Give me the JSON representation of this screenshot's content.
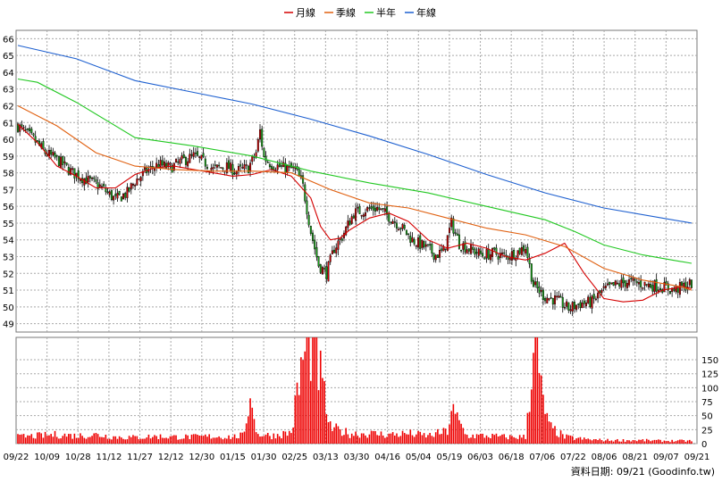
{
  "chart_data": {
    "type": "candlestick",
    "legend": [
      {
        "label": "月線",
        "color": "#d40000"
      },
      {
        "label": "季線",
        "color": "#e06010"
      },
      {
        "label": "半年",
        "color": "#22c822"
      },
      {
        "label": "年線",
        "color": "#1e60d0"
      }
    ],
    "x_tick_labels": [
      "09/22",
      "10/09",
      "10/28",
      "11/12",
      "11/27",
      "12/12",
      "12/30",
      "01/15",
      "01/30",
      "02/25",
      "03/13",
      "03/30",
      "04/16",
      "05/04",
      "05/19",
      "06/03",
      "06/18",
      "07/06",
      "07/22",
      "08/06",
      "08/21",
      "09/07",
      "09/21"
    ],
    "price_axis": {
      "ylim": [
        48.5,
        66.5
      ],
      "ticks": [
        49,
        50,
        51,
        52,
        53,
        54,
        55,
        56,
        57,
        58,
        59,
        60,
        61,
        62,
        63,
        64,
        65,
        66
      ]
    },
    "volume_axis": {
      "ylim": [
        0,
        190
      ],
      "ticks": [
        0,
        25,
        50,
        75,
        100,
        125,
        150
      ]
    },
    "colors": {
      "up": "#cc0000",
      "down": "#18a018",
      "volume": "#ee0000",
      "grid": "#a8a8a8"
    },
    "ma_series": {
      "month": [
        [
          0,
          60.9
        ],
        [
          10,
          59.8
        ],
        [
          20,
          58.4
        ],
        [
          30,
          57.8
        ],
        [
          40,
          57.1
        ],
        [
          50,
          57.1
        ],
        [
          60,
          57.9
        ],
        [
          70,
          58.3
        ],
        [
          80,
          58.4
        ],
        [
          90,
          58.2
        ],
        [
          100,
          58.0
        ],
        [
          110,
          57.8
        ],
        [
          120,
          57.9
        ],
        [
          130,
          58.2
        ],
        [
          140,
          57.8
        ],
        [
          150,
          56.5
        ],
        [
          155,
          54.8
        ],
        [
          160,
          54.0
        ],
        [
          165,
          54.1
        ],
        [
          170,
          54.6
        ],
        [
          180,
          55.3
        ],
        [
          190,
          55.6
        ],
        [
          200,
          55.1
        ],
        [
          210,
          54.0
        ],
        [
          220,
          53.5
        ],
        [
          230,
          53.8
        ],
        [
          240,
          53.5
        ],
        [
          250,
          53.0
        ],
        [
          260,
          52.8
        ],
        [
          270,
          53.2
        ],
        [
          280,
          53.8
        ],
        [
          290,
          52.0
        ],
        [
          300,
          50.5
        ],
        [
          310,
          50.3
        ],
        [
          320,
          50.4
        ],
        [
          330,
          51.0
        ],
        [
          340,
          51.2
        ],
        [
          345,
          51.1
        ]
      ],
      "quarter": [
        [
          0,
          62.0
        ],
        [
          20,
          60.8
        ],
        [
          40,
          59.2
        ],
        [
          60,
          58.4
        ],
        [
          80,
          58.2
        ],
        [
          100,
          58.1
        ],
        [
          120,
          58.1
        ],
        [
          140,
          58.0
        ],
        [
          160,
          57.0
        ],
        [
          180,
          56.2
        ],
        [
          200,
          55.9
        ],
        [
          220,
          55.3
        ],
        [
          240,
          54.7
        ],
        [
          260,
          54.3
        ],
        [
          280,
          53.6
        ],
        [
          300,
          52.3
        ],
        [
          320,
          51.6
        ],
        [
          340,
          51.2
        ],
        [
          345,
          51.0
        ]
      ],
      "half": [
        [
          0,
          63.6
        ],
        [
          10,
          63.4
        ],
        [
          30,
          62.2
        ],
        [
          60,
          60.1
        ],
        [
          90,
          59.6
        ],
        [
          120,
          59.0
        ],
        [
          150,
          58.1
        ],
        [
          180,
          57.4
        ],
        [
          210,
          56.8
        ],
        [
          240,
          56.0
        ],
        [
          270,
          55.2
        ],
        [
          285,
          54.5
        ],
        [
          300,
          53.7
        ],
        [
          320,
          53.1
        ],
        [
          335,
          52.8
        ],
        [
          345,
          52.6
        ]
      ],
      "year": [
        [
          0,
          65.6
        ],
        [
          30,
          64.8
        ],
        [
          60,
          63.5
        ],
        [
          90,
          62.8
        ],
        [
          120,
          62.1
        ],
        [
          150,
          61.2
        ],
        [
          180,
          60.2
        ],
        [
          210,
          59.1
        ],
        [
          240,
          57.9
        ],
        [
          270,
          56.8
        ],
        [
          300,
          55.9
        ],
        [
          330,
          55.3
        ],
        [
          345,
          55.0
        ]
      ]
    },
    "price_path": [
      [
        0,
        60.8
      ],
      [
        8,
        60.0
      ],
      [
        14,
        59.2
      ],
      [
        20,
        58.8
      ],
      [
        28,
        58.0
      ],
      [
        35,
        57.6
      ],
      [
        42,
        57.2
      ],
      [
        50,
        56.4
      ],
      [
        56,
        56.8
      ],
      [
        60,
        57.5
      ],
      [
        66,
        58.1
      ],
      [
        72,
        58.5
      ],
      [
        78,
        58.3
      ],
      [
        84,
        58.7
      ],
      [
        90,
        59.0
      ],
      [
        96,
        58.6
      ],
      [
        100,
        58.2
      ],
      [
        106,
        58.4
      ],
      [
        112,
        58.1
      ],
      [
        118,
        58.3
      ],
      [
        122,
        59.2
      ],
      [
        124,
        60.5
      ],
      [
        126,
        58.9
      ],
      [
        130,
        58.5
      ],
      [
        136,
        58.3
      ],
      [
        142,
        58.2
      ],
      [
        146,
        57.2
      ],
      [
        150,
        54.5
      ],
      [
        154,
        52.5
      ],
      [
        158,
        52.0
      ],
      [
        162,
        53.5
      ],
      [
        166,
        54.2
      ],
      [
        172,
        55.6
      ],
      [
        178,
        55.8
      ],
      [
        184,
        55.9
      ],
      [
        190,
        55.4
      ],
      [
        196,
        54.8
      ],
      [
        202,
        54.0
      ],
      [
        208,
        53.6
      ],
      [
        214,
        53.1
      ],
      [
        218,
        53.3
      ],
      [
        222,
        55.0
      ],
      [
        226,
        53.8
      ],
      [
        232,
        53.4
      ],
      [
        238,
        53.1
      ],
      [
        244,
        53.2
      ],
      [
        250,
        53.0
      ],
      [
        256,
        53.3
      ],
      [
        260,
        53.6
      ],
      [
        264,
        51.3
      ],
      [
        270,
        50.6
      ],
      [
        276,
        50.4
      ],
      [
        282,
        49.9
      ],
      [
        288,
        50.2
      ],
      [
        294,
        50.3
      ],
      [
        300,
        51.0
      ],
      [
        306,
        51.3
      ],
      [
        312,
        51.5
      ],
      [
        318,
        51.4
      ],
      [
        324,
        51.3
      ],
      [
        330,
        51.2
      ],
      [
        336,
        51.0
      ],
      [
        345,
        51.4
      ]
    ],
    "volume_path": [
      [
        0,
        12
      ],
      [
        10,
        14
      ],
      [
        20,
        16
      ],
      [
        30,
        14
      ],
      [
        40,
        16
      ],
      [
        50,
        12
      ],
      [
        60,
        11
      ],
      [
        70,
        13
      ],
      [
        80,
        12
      ],
      [
        90,
        12
      ],
      [
        100,
        13
      ],
      [
        110,
        12
      ],
      [
        116,
        15
      ],
      [
        118,
        70
      ],
      [
        120,
        95
      ],
      [
        122,
        18
      ],
      [
        130,
        14
      ],
      [
        140,
        20
      ],
      [
        146,
        150
      ],
      [
        150,
        185
      ],
      [
        152,
        170
      ],
      [
        156,
        100
      ],
      [
        160,
        28
      ],
      [
        170,
        18
      ],
      [
        180,
        18
      ],
      [
        190,
        16
      ],
      [
        200,
        18
      ],
      [
        210,
        14
      ],
      [
        220,
        22
      ],
      [
        222,
        60
      ],
      [
        230,
        14
      ],
      [
        240,
        14
      ],
      [
        250,
        12
      ],
      [
        260,
        12
      ],
      [
        264,
        170
      ],
      [
        266,
        160
      ],
      [
        268,
        90
      ],
      [
        272,
        30
      ],
      [
        280,
        12
      ],
      [
        290,
        8
      ],
      [
        300,
        6
      ],
      [
        310,
        6
      ],
      [
        320,
        6
      ],
      [
        330,
        5
      ],
      [
        345,
        5
      ]
    ],
    "footer_label": "資料日期: 09/21  (Goodinfo.tw)"
  }
}
